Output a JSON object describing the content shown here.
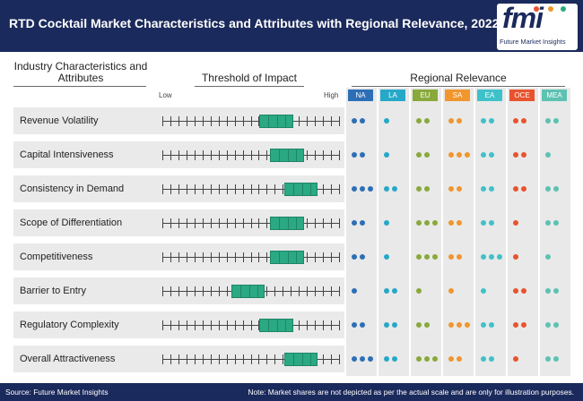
{
  "title": "RTD Cocktail Market Characteristics and Attributes with Regional Relevance, 2022",
  "logo": {
    "text": "fmi",
    "subtitle": "Future Market Insights"
  },
  "columns": {
    "industry": "Industry Characteristics and Attributes",
    "threshold": "Threshold of Impact",
    "regional": "Regional Relevance",
    "low": "Low",
    "high": "High"
  },
  "regions": [
    {
      "code": "NA",
      "color": "#2d6fb6"
    },
    {
      "code": "LA",
      "color": "#26a8c8"
    },
    {
      "code": "EU",
      "color": "#89a93b"
    },
    {
      "code": "SA",
      "color": "#f0962d"
    },
    {
      "code": "EA",
      "color": "#3fc1c9"
    },
    {
      "code": "OCE",
      "color": "#e8532e"
    },
    {
      "code": "MEA",
      "color": "#5cc2b2"
    }
  ],
  "rows": [
    {
      "label": "Revenue Volatility",
      "impact": [
        0.55,
        0.74
      ],
      "dots": [
        2,
        1,
        2,
        2,
        2,
        2,
        2
      ]
    },
    {
      "label": "Capital Intensiveness",
      "impact": [
        0.61,
        0.8
      ],
      "dots": [
        2,
        1,
        2,
        3,
        2,
        2,
        1
      ]
    },
    {
      "label": "Consistency in Demand",
      "impact": [
        0.69,
        0.88
      ],
      "dots": [
        3,
        2,
        2,
        2,
        2,
        2,
        2
      ]
    },
    {
      "label": "Scope of Differentiation",
      "impact": [
        0.61,
        0.8
      ],
      "dots": [
        2,
        1,
        3,
        2,
        2,
        1,
        2
      ]
    },
    {
      "label": "Competitiveness",
      "impact": [
        0.61,
        0.8
      ],
      "dots": [
        2,
        1,
        3,
        2,
        3,
        1,
        1
      ]
    },
    {
      "label": "Barrier to Entry",
      "impact": [
        0.39,
        0.58
      ],
      "dots": [
        1,
        2,
        1,
        1,
        1,
        2,
        2
      ]
    },
    {
      "label": "Regulatory Complexity",
      "impact": [
        0.55,
        0.74
      ],
      "dots": [
        2,
        2,
        2,
        3,
        2,
        2,
        2
      ]
    },
    {
      "label": "Overall Attractiveness",
      "impact": [
        0.69,
        0.88
      ],
      "dots": [
        3,
        2,
        3,
        2,
        2,
        1,
        2
      ]
    }
  ],
  "footer": {
    "source": "Source: Future Market Insights",
    "note": "Note: Market shares are not depicted as per the actual scale and are only for illustration purposes."
  }
}
